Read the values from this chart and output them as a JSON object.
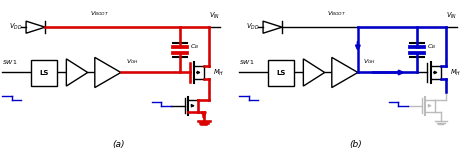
{
  "fig_width": 4.74,
  "fig_height": 1.51,
  "dpi": 100,
  "bg_color": "#ffffff",
  "label_a": "(a)",
  "label_b": "(b)",
  "red": "#dd0000",
  "blue": "#0000cc",
  "black": "#000000",
  "gray": "#999999",
  "light_gray": "#bbbbbb"
}
